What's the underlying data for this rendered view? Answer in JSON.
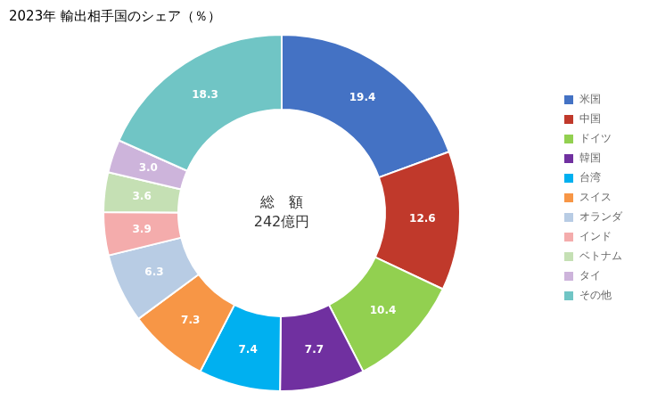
{
  "chart_data": {
    "type": "doughnut",
    "title": "2023年 輸出相手国のシェア（％）",
    "annotations": [
      "総　額",
      "242億円"
    ],
    "categories": [
      "米国",
      "中国",
      "ドイツ",
      "韓国",
      "台湾",
      "スイス",
      "オランダ",
      "インド",
      "ベトナム",
      "タイ",
      "その他"
    ],
    "values": [
      19.4,
      12.6,
      10.4,
      7.7,
      7.4,
      7.3,
      6.3,
      3.9,
      3.6,
      3.0,
      18.3
    ],
    "value_labels": [
      "19.4",
      "12.6",
      "10.4",
      "7.7",
      "7.4",
      "7.3",
      "6.3",
      "3.9",
      "3.6",
      "3.0",
      "18.3"
    ],
    "colors": [
      "#4472C4",
      "#C0392B",
      "#92D050",
      "#7030A0",
      "#00B0F0",
      "#F79646",
      "#B8CCE4",
      "#F4ACAC",
      "#C5E0B4",
      "#CDB4DB",
      "#70C5C5"
    ],
    "data_labels": true,
    "legend": "right"
  }
}
